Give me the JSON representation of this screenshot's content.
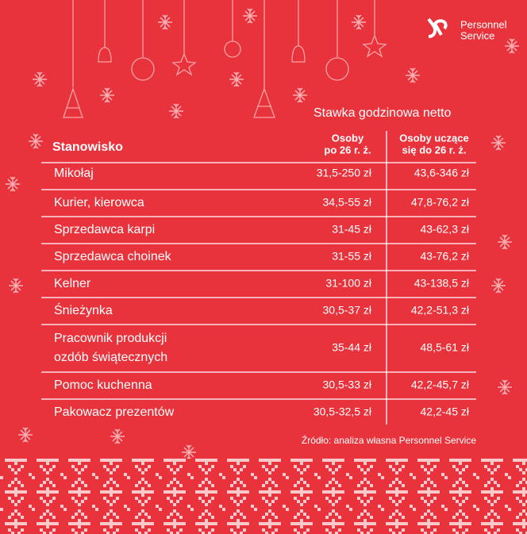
{
  "logo": {
    "line1": "Personnel",
    "line2": "Service"
  },
  "table": {
    "title": "Stawka godzinowa netto",
    "headers": {
      "position": "Stanowisko",
      "col1": [
        "Osoby",
        "po 26 r. ż."
      ],
      "col2": [
        "Osoby uczące",
        "się do 26 r. ż."
      ]
    },
    "rows": [
      {
        "position": [
          "Mikołaj"
        ],
        "col1": "31,5-250 zł",
        "col2": "43,6-346 zł"
      },
      {
        "position": [
          "Kurier, kierowca"
        ],
        "col1": "34,5-55 zł",
        "col2": "47,8-76,2 zł"
      },
      {
        "position": [
          "Sprzedawca karpi"
        ],
        "col1": "31-45 zł",
        "col2": "43-62,3 zł"
      },
      {
        "position": [
          "Sprzedawca choinek"
        ],
        "col1": "31-55 zł",
        "col2": "43-76,2 zł"
      },
      {
        "position": [
          "Kelner"
        ],
        "col1": "31-100 zł",
        "col2": "43-138,5 zł"
      },
      {
        "position": [
          "Śnieżynka"
        ],
        "col1": "30,5-37 zł",
        "col2": "42,2-51,3 zł"
      },
      {
        "position": [
          "Pracownik produkcji",
          "ozdób świątecznych"
        ],
        "col1": "35-44 zł",
        "col2": "48,5-61 zł"
      },
      {
        "position": [
          "Pomoc kuchenna"
        ],
        "col1": "30,5-33 zł",
        "col2": "42,2-45,7 zł"
      },
      {
        "position": [
          "Pakowacz prezentów"
        ],
        "col1": "30,5-32,5 zł",
        "col2": "42,2-45 zł"
      }
    ]
  },
  "source": "Źródło: analiza własna Personnel Service"
}
